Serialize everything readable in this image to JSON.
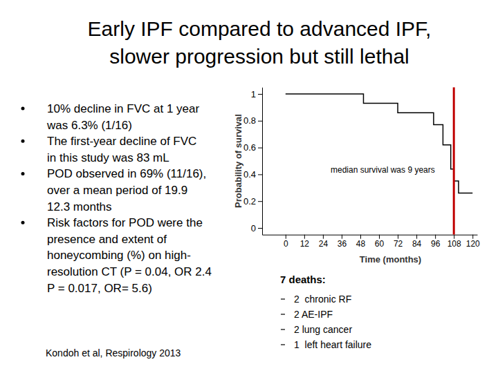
{
  "chart_data": {
    "type": "line",
    "line_style": "step",
    "color": "#000000",
    "y_label": "Probability of survival",
    "x_label": "Time (months)",
    "x": [
      0,
      50,
      72,
      95,
      101,
      106,
      108,
      111,
      120
    ],
    "values": [
      1,
      0.93,
      0.86,
      0.77,
      0.62,
      0.44,
      0.35,
      0.26,
      0.26
    ],
    "xlim": [
      -15,
      123
    ],
    "ylim": [
      -0.05,
      1.05
    ],
    "xticks": [
      0,
      12,
      24,
      36,
      48,
      60,
      72,
      84,
      96,
      108,
      120
    ],
    "yticks": [
      0,
      0.2,
      0.4,
      0.6,
      0.8,
      1
    ],
    "median_x": 108,
    "median_color": "#c00000",
    "annotation": "median survival was 9 years"
  },
  "slide": {
    "title": [
      "Early IPF compared to advanced IPF,",
      "slower progression but still lethal"
    ],
    "bullets": [
      {
        "lines": [
          "10% decline in FVC at 1 year",
          "was 6.3% (1/16)"
        ]
      },
      {
        "lines": [
          "The first-year decline of FVC",
          "in this study was 83 mL"
        ]
      },
      {
        "lines": [
          "POD observed in 69% (11/16),",
          "over a mean period of 19.9",
          "12.3 months"
        ]
      },
      {
        "lines": [
          "Risk factors for POD were the",
          "presence and extent of",
          "honeycombing (%) on high-",
          "resolution CT (P = 0.04, OR 2.4",
          "P = 0.017, OR= 5.6)"
        ]
      }
    ],
    "citation": "Kondoh et al, Respirology 2013",
    "deaths_heading": "7 deaths:",
    "deaths": [
      "2  chronic RF",
      "2 AE-IPF",
      "2 lung cancer",
      "1  left heart failure"
    ]
  }
}
